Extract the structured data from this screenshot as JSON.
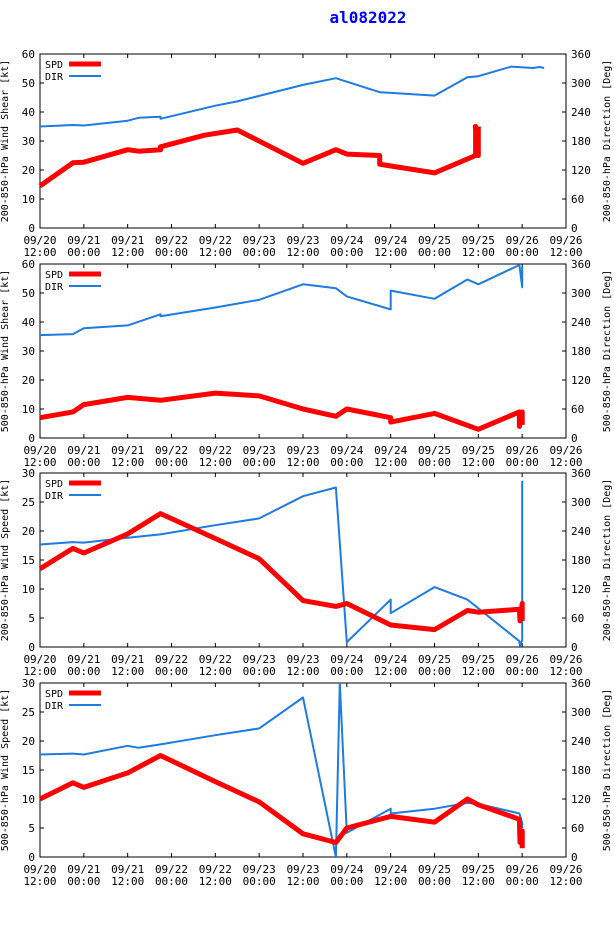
{
  "title": "al082022",
  "colors": {
    "spd": "#ff0000",
    "dir": "#1e7be0",
    "axis": "#000000"
  },
  "legend": {
    "spd": "SPD",
    "dir": "DIR"
  },
  "x_axis": {
    "domain": [
      0,
      6
    ],
    "tick_positions": [
      0,
      0.5,
      1,
      1.5,
      2,
      2.5,
      3,
      3.5,
      4,
      4.5,
      5,
      5.5,
      6
    ],
    "tick_labels": [
      [
        "09/20",
        "12:00"
      ],
      [
        "09/21",
        "00:00"
      ],
      [
        "09/21",
        "12:00"
      ],
      [
        "09/22",
        "00:00"
      ],
      [
        "09/22",
        "12:00"
      ],
      [
        "09/23",
        "00:00"
      ],
      [
        "09/23",
        "12:00"
      ],
      [
        "09/24",
        "00:00"
      ],
      [
        "09/24",
        "12:00"
      ],
      [
        "09/25",
        "00:00"
      ],
      [
        "09/25",
        "12:00"
      ],
      [
        "09/26",
        "00:00"
      ],
      [
        "09/26",
        "12:00"
      ]
    ]
  },
  "chart_data": [
    {
      "type": "line",
      "ylabel": "200-850-hPa Wind Shear [kt]",
      "y2label": "200-850-hPa Direction [Deg]",
      "ylim": [
        0,
        60
      ],
      "yticks": [
        0,
        10,
        20,
        30,
        40,
        50,
        60
      ],
      "y2lim": [
        0,
        360
      ],
      "y2ticks": [
        0,
        60,
        120,
        180,
        240,
        300,
        360
      ],
      "series": [
        {
          "name": "SPD",
          "axis": "left",
          "x": [
            0,
            0.375,
            0.5,
            1.0,
            1.125,
            1.375,
            1.375,
            1.875,
            2.25,
            3.0,
            3.375,
            3.5,
            3.875,
            3.875,
            4.5,
            4.969,
            4.969,
            4.965,
            5.0,
            5.0
          ],
          "y": [
            14.5,
            22.5,
            22.7,
            27.0,
            26.5,
            27.0,
            28.0,
            32.0,
            33.8,
            22.3,
            27.0,
            25.5,
            25.0,
            22.0,
            19.0,
            25.0,
            35.0,
            35.0,
            25.0,
            35.0
          ]
        },
        {
          "name": "DIR",
          "axis": "right",
          "x": [
            0,
            0.375,
            0.5,
            1.0,
            1.125,
            1.375,
            1.375,
            2.0,
            2.25,
            3.0,
            3.375,
            3.875,
            4.5,
            4.875,
            5.0,
            5.375,
            5.625,
            5.7,
            5.75
          ],
          "y": [
            210,
            213,
            212,
            222,
            228,
            230,
            226,
            253,
            262,
            296,
            310,
            281,
            274,
            312,
            314,
            334,
            331,
            333,
            331
          ]
        }
      ]
    },
    {
      "type": "line",
      "ylabel": "500-850-hPa Wind Shear [kt]",
      "y2label": "500-850-hPa Direction [Deg]",
      "ylim": [
        0,
        60
      ],
      "yticks": [
        0,
        10,
        20,
        30,
        40,
        50,
        60
      ],
      "y2lim": [
        0,
        360
      ],
      "y2ticks": [
        0,
        60,
        120,
        180,
        240,
        300,
        360
      ],
      "series": [
        {
          "name": "SPD",
          "axis": "left",
          "x": [
            0,
            0.375,
            0.5,
            1.0,
            1.375,
            2.0,
            2.5,
            3.0,
            3.375,
            3.5,
            4.0,
            4.0,
            4.5,
            5.0,
            5.469,
            5.469,
            5.5,
            5.5
          ],
          "y": [
            7.0,
            9.0,
            11.5,
            14.0,
            13.0,
            15.5,
            14.5,
            10.0,
            7.5,
            10.0,
            7.0,
            5.5,
            8.5,
            3.0,
            9.0,
            4.0,
            9.0,
            4.5
          ]
        },
        {
          "name": "DIR",
          "axis": "right",
          "x": [
            0,
            0.375,
            0.5,
            1.0,
            1.375,
            1.375,
            2.0,
            2.5,
            3.0,
            3.375,
            3.5,
            4.0,
            4.0,
            4.5,
            4.875,
            5.0,
            5.469,
            5.5,
            5.5
          ],
          "y": [
            213,
            215,
            227,
            233,
            256,
            252,
            270,
            286,
            318,
            310,
            293,
            266,
            305,
            288,
            328,
            318,
            358,
            312,
            355
          ]
        }
      ]
    },
    {
      "type": "line",
      "ylabel": "200-850-hPa Wind Speed [kt]",
      "y2label": "200-850-hPa Direction [Deg]",
      "ylim": [
        0,
        30
      ],
      "yticks": [
        0,
        5,
        10,
        15,
        20,
        25,
        30
      ],
      "y2lim": [
        0,
        360
      ],
      "y2ticks": [
        0,
        60,
        120,
        180,
        240,
        300,
        360
      ],
      "series": [
        {
          "name": "SPD",
          "axis": "left",
          "x": [
            0,
            0.375,
            0.5,
            1.0,
            1.375,
            2.0,
            2.5,
            3.0,
            3.375,
            3.5,
            4.0,
            4.5,
            4.875,
            5.0,
            5.469,
            5.475,
            5.5,
            5.5
          ],
          "y": [
            13.5,
            17.0,
            16.2,
            19.5,
            23.0,
            18.7,
            15.2,
            8.0,
            7.0,
            7.5,
            3.8,
            3.0,
            6.3,
            6.0,
            6.5,
            4.5,
            7.5,
            4.5
          ]
        },
        {
          "name": "DIR",
          "axis": "right",
          "x": [
            0,
            0.375,
            0.5,
            1.0,
            1.375,
            2.0,
            2.5,
            3.0,
            3.375,
            3.5,
            4.0,
            4.0,
            4.5,
            4.875,
            5.0,
            5.469,
            5.475,
            5.5,
            5.5
          ],
          "y": [
            212,
            217,
            216,
            226,
            233,
            252,
            266,
            312,
            330,
            10,
            98,
            70,
            124,
            98,
            80,
            12,
            2,
            14,
            344
          ]
        }
      ]
    },
    {
      "type": "line",
      "ylabel": "500-850-hPa Wind Speed [kt]",
      "y2label": "500-850-hPa Direction [Deg]",
      "ylim": [
        0,
        30
      ],
      "yticks": [
        0,
        5,
        10,
        15,
        20,
        25,
        30
      ],
      "y2lim": [
        0,
        360
      ],
      "y2ticks": [
        0,
        60,
        120,
        180,
        240,
        300,
        360
      ],
      "series": [
        {
          "name": "SPD",
          "axis": "left",
          "x": [
            0,
            0.375,
            0.5,
            1.0,
            1.375,
            2.0,
            2.5,
            3.0,
            3.375,
            3.5,
            4.0,
            4.5,
            4.875,
            5.0,
            5.469,
            5.475,
            5.5,
            5.5
          ],
          "y": [
            10.0,
            12.8,
            12.0,
            14.5,
            17.5,
            13.0,
            9.5,
            4.0,
            2.5,
            5.0,
            7.0,
            6.0,
            10.0,
            9.0,
            6.5,
            2.5,
            4.5,
            1.5
          ]
        },
        {
          "name": "DIR",
          "axis": "right",
          "x": [
            0,
            0.375,
            0.5,
            1.0,
            1.125,
            1.375,
            2.0,
            2.5,
            3.0,
            3.375,
            3.42,
            3.5,
            4.0,
            4.0,
            4.5,
            4.875,
            5.0,
            5.469,
            5.5,
            5.5
          ],
          "y": [
            212,
            214,
            212,
            230,
            226,
            233,
            252,
            266,
            330,
            0,
            360,
            50,
            100,
            90,
            100,
            112,
            110,
            90,
            70,
            60
          ]
        }
      ]
    }
  ]
}
